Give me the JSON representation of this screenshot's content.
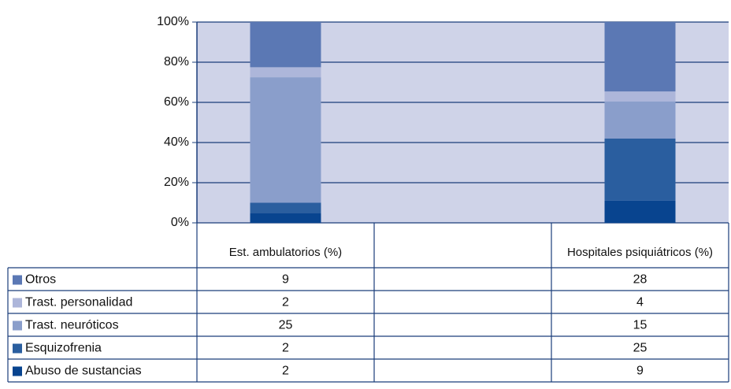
{
  "chart_data": {
    "type": "stacked100",
    "categories": [
      "Est. ambulatorios (%)",
      null,
      "Hospitales psiquiátricos (%)"
    ],
    "series": [
      {
        "name": "Otros",
        "color": "#5b78b4",
        "values": [
          9,
          null,
          28
        ]
      },
      {
        "name": "Trast. personalidad",
        "color": "#adb6da",
        "values": [
          2,
          null,
          4
        ]
      },
      {
        "name": "Trast. neuróticos",
        "color": "#8a9ecb",
        "values": [
          25,
          null,
          15
        ]
      },
      {
        "name": "Esquizofrenia",
        "color": "#2a5e9f",
        "values": [
          2,
          null,
          25
        ]
      },
      {
        "name": "Abuso de sustancias",
        "color": "#08448f",
        "values": [
          2,
          null,
          9
        ]
      }
    ],
    "ylim": [
      0,
      100
    ],
    "yticks": [
      {
        "value": 0,
        "label": "0%"
      },
      {
        "value": 20,
        "label": "20%"
      },
      {
        "value": 40,
        "label": "40%"
      },
      {
        "value": 60,
        "label": "60%"
      },
      {
        "value": 80,
        "label": "80%"
      },
      {
        "value": 100,
        "label": "100%"
      }
    ],
    "grid": true
  }
}
